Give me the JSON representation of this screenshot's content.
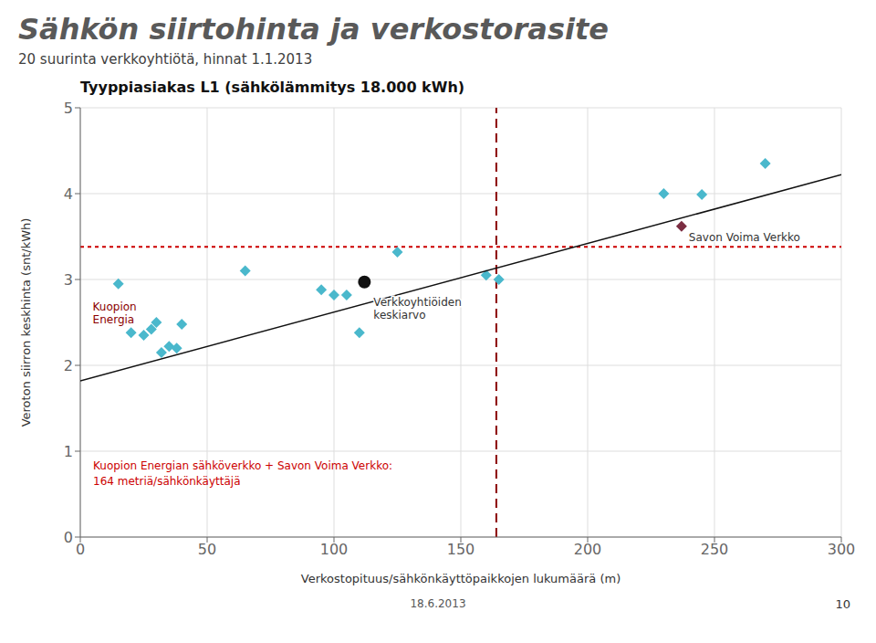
{
  "chart_data": {
    "type": "scatter",
    "title": "Sähkön siirtohinta ja verkostorasite",
    "subtitle": "20 suurinta verkkoyhtiötä, hinnat 1.1.2013",
    "chart_title": "Tyyppiasiakas L1 (sähkölämmitys 18.000 kWh)",
    "xlabel": "Verkostopituus/sähkönkäyttöpaikkojen lukumäärä (m)",
    "ylabel": "Veroton siirron keskhinta (snt/kWh)",
    "footer": [
      "18.6.2013",
      "10"
    ],
    "xlim": [
      0,
      300
    ],
    "ylim": [
      0,
      5
    ],
    "xticks": [
      0,
      50,
      100,
      150,
      200,
      250,
      300
    ],
    "yticks": [
      0,
      1,
      2,
      3,
      4,
      5
    ],
    "grid": true,
    "series": [
      {
        "type": "scatter",
        "marker": "diamond",
        "color": "#4ab8cc",
        "x": [
          20,
          25,
          28,
          30,
          32,
          35,
          38,
          40,
          65,
          95,
          100,
          105,
          110,
          125,
          160,
          165,
          230,
          245,
          270,
          15
        ],
        "values": [
          2.38,
          2.35,
          2.42,
          2.5,
          2.15,
          2.22,
          2.2,
          2.48,
          3.1,
          2.88,
          2.82,
          2.82,
          2.38,
          3.32,
          3.05,
          3.0,
          4.0,
          3.99,
          4.35,
          2.95
        ]
      },
      {
        "type": "scatter",
        "marker": "diamond",
        "color": "#7b2d42",
        "x": [
          237
        ],
        "values": [
          3.62
        ]
      },
      {
        "type": "scatter",
        "marker": "circle",
        "color": "#111111",
        "x": [
          112
        ],
        "values": [
          2.97
        ]
      },
      {
        "type": "line",
        "marker": "none",
        "color": "#111111",
        "x": [
          0,
          300
        ],
        "values": [
          1.82,
          4.22
        ]
      }
    ],
    "hline": {
      "value": 3.38,
      "color": "#cc0000",
      "line_style": "dotted"
    },
    "vline": {
      "value": 164,
      "color": "#8b0000",
      "line_style": "dashed"
    },
    "annotations": [
      {
        "text": "Kuopion\nEnergia",
        "point": [
          20,
          2.38
        ],
        "color": "#8b0000"
      },
      {
        "text": "Savon Voima Verkko",
        "point": [
          237,
          3.62
        ]
      },
      {
        "text": "Verkkoyhtiöiden\nkeskiarvo",
        "point": [
          112,
          2.97
        ]
      },
      {
        "text": "Kuopion Energian sähköverkko + Savon Voima Verkko:\n164 metriä/sähkönkäyttäjä",
        "color": "#cc0000"
      }
    ]
  }
}
